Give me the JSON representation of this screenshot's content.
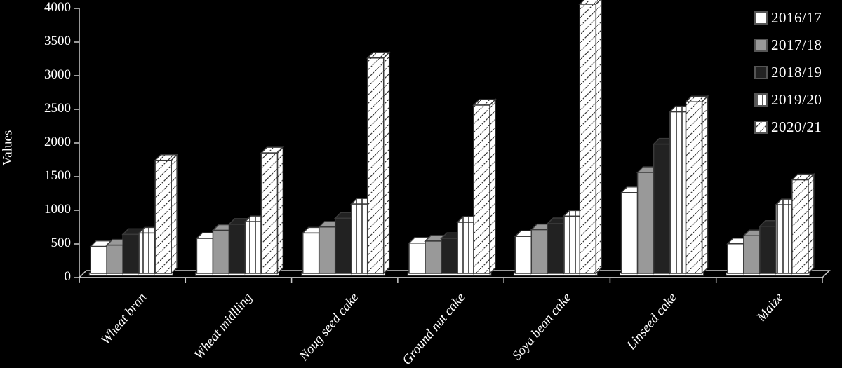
{
  "chart_data": {
    "type": "bar",
    "style": "3d-clustered-column",
    "title": "",
    "xlabel": "",
    "ylabel": "Values",
    "ylim": [
      0,
      4000
    ],
    "yticks": [
      0,
      500,
      1000,
      1500,
      2000,
      2500,
      3000,
      3500,
      4000
    ],
    "categories": [
      "Wheat bran",
      "Wheat midlling",
      "Noug seed cake",
      "Ground nut cake",
      "Soya bean cake",
      "Linseed cake",
      "Maize"
    ],
    "series": [
      {
        "name": "2016/17",
        "fill": "white",
        "values": [
          400,
          520,
          600,
          450,
          550,
          1200,
          440
        ]
      },
      {
        "name": "2017/18",
        "fill": "gray",
        "values": [
          420,
          640,
          690,
          480,
          650,
          1500,
          560
        ]
      },
      {
        "name": "2018/19",
        "fill": "dark",
        "values": [
          580,
          730,
          820,
          520,
          740,
          1920,
          700
        ]
      },
      {
        "name": "2019/20",
        "fill": "vertical-stripes",
        "values": [
          600,
          770,
          1030,
          760,
          850,
          2400,
          1020
        ]
      },
      {
        "name": "2020/21",
        "fill": "diagonal-hatch",
        "values": [
          1680,
          1790,
          3200,
          2500,
          4000,
          2550,
          1390
        ]
      }
    ],
    "legend_position": "top-right",
    "grid": false
  },
  "colors": {
    "background": "#000000",
    "white_fill": "#ffffff",
    "gray_fill": "#999999",
    "dark_fill": "#222222",
    "outline": "#3a3a3a",
    "axis": "#cccccc"
  }
}
